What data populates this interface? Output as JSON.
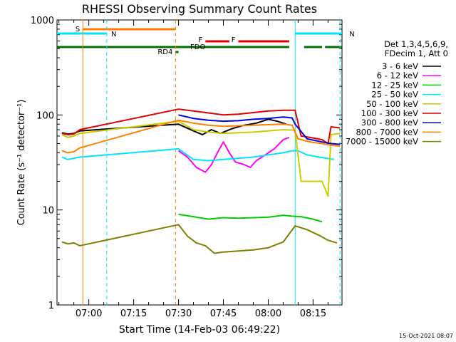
{
  "chart_data": {
    "type": "line",
    "title": "RHESSI Observing Summary Count Rates",
    "xlabel": "Start Time (14-Feb-03 06:49:22)",
    "ylabel": "Count Rate (s⁻¹ detector⁻¹)",
    "y_scale": "log",
    "ylim": [
      1,
      1000
    ],
    "xlim": [
      "06:49:22",
      "08:24:40"
    ],
    "x_ticks": [
      "07:00",
      "07:15",
      "07:30",
      "07:45",
      "08:00",
      "08:15"
    ],
    "y_ticks": [
      "1",
      "10",
      "100",
      "1000"
    ],
    "legend_header": [
      "Det 1,3,4,5,6,9,",
      "FDecim 1, Att 0"
    ],
    "legend_placement": "right",
    "timestamp": "15-Oct-2021 08:07",
    "segments": [
      {
        "label": "S",
        "type": "SAA",
        "color": "#ff8000",
        "start": "06:58:00",
        "end": "07:29:00"
      },
      {
        "label": "N",
        "type": "Night",
        "color": "#00e5ff",
        "start": "06:49:22",
        "end": "07:06:00"
      },
      {
        "label": "N",
        "type": "Night",
        "color": "#00e5ff",
        "start": "08:09:00",
        "end": "08:24:40"
      },
      {
        "label": "F",
        "type": "Flare",
        "color": "#e00000",
        "start": "07:39:00",
        "end": "07:47:00"
      },
      {
        "label": "F",
        "type": "Flare",
        "color": "#e00000",
        "start": "07:50:00",
        "end": "08:07:00"
      },
      {
        "label": "FDO",
        "type": "Decimation",
        "color": "#007000",
        "start": "06:49:22",
        "end": "08:07:00"
      },
      {
        "label": "",
        "type": "Decimation",
        "color": "#007000",
        "start": "08:12:00",
        "end": "08:18:00"
      },
      {
        "label": "",
        "type": "Decimation",
        "color": "#007000",
        "start": "08:19:00",
        "end": "08:24:40"
      },
      {
        "label": "RD4",
        "type": "Rear Decimation",
        "color": "#007000",
        "start": "07:29:00",
        "end": "07:30:00"
      }
    ],
    "vlines": [
      {
        "time": "06:58:00",
        "color": "#ff8000",
        "style": "solid"
      },
      {
        "time": "07:06:00",
        "color": "#00e5ff",
        "style": "dashed"
      },
      {
        "time": "07:29:00",
        "color": "#ff8000",
        "style": "dashed"
      },
      {
        "time": "08:09:00",
        "color": "#00e5ff",
        "style": "solid"
      },
      {
        "time": "08:24:00",
        "color": "#00e5ff",
        "style": "dashed"
      }
    ],
    "series": [
      {
        "name": "3 - 6 keV",
        "color": "#000000",
        "points": [
          [
            "06:51",
            65
          ],
          [
            "06:53",
            63
          ],
          [
            "06:55",
            64
          ],
          [
            "06:57",
            68
          ],
          [
            "07:30",
            80
          ],
          [
            "07:35",
            68
          ],
          [
            "07:38",
            62
          ],
          [
            "07:41",
            70
          ],
          [
            "07:44",
            64
          ],
          [
            "07:48",
            72
          ],
          [
            "07:52",
            78
          ],
          [
            "07:56",
            82
          ],
          [
            "08:00",
            90
          ],
          [
            "08:03",
            86
          ],
          [
            "08:06",
            80
          ]
        ]
      },
      {
        "name": "6 - 12 keV",
        "color": "#ff00ff",
        "points": [
          [
            "07:30",
            42
          ],
          [
            "07:33",
            36
          ],
          [
            "07:36",
            28
          ],
          [
            "07:39",
            25
          ],
          [
            "07:41",
            30
          ],
          [
            "07:43",
            40
          ],
          [
            "07:45",
            52
          ],
          [
            "07:47",
            40
          ],
          [
            "07:49",
            32
          ],
          [
            "07:52",
            30
          ],
          [
            "07:54",
            28
          ],
          [
            "07:56",
            33
          ],
          [
            "07:59",
            38
          ],
          [
            "08:02",
            44
          ],
          [
            "08:05",
            55
          ],
          [
            "08:07",
            58
          ]
        ]
      },
      {
        "name": "12 - 25 keV",
        "color": "#00cc00",
        "points": [
          [
            "07:30",
            9
          ],
          [
            "07:35",
            8.5
          ],
          [
            "07:40",
            8
          ],
          [
            "07:45",
            8.3
          ],
          [
            "07:50",
            8.2
          ],
          [
            "07:55",
            8.3
          ],
          [
            "08:00",
            8.4
          ],
          [
            "08:05",
            8.8
          ],
          [
            "08:08",
            8.6
          ],
          [
            "08:11",
            8.5
          ],
          [
            "08:15",
            8
          ],
          [
            "08:18",
            7.5
          ]
        ]
      },
      {
        "name": "25 - 50 keV",
        "color": "#00e5ff",
        "points": [
          [
            "06:51",
            36
          ],
          [
            "06:53",
            34
          ],
          [
            "06:55",
            35
          ],
          [
            "06:57",
            36
          ],
          [
            "07:30",
            44
          ],
          [
            "07:35",
            34
          ],
          [
            "07:40",
            33
          ],
          [
            "07:45",
            34
          ],
          [
            "07:50",
            35
          ],
          [
            "07:55",
            36
          ],
          [
            "08:00",
            38
          ],
          [
            "08:05",
            40
          ],
          [
            "08:08",
            42
          ],
          [
            "08:10",
            42
          ],
          [
            "08:13",
            38
          ],
          [
            "08:17",
            36
          ],
          [
            "08:22",
            34
          ]
        ]
      },
      {
        "name": "50 - 100 keV",
        "color": "#cccc00",
        "points": [
          [
            "06:51",
            62
          ],
          [
            "06:53",
            58
          ],
          [
            "06:55",
            60
          ],
          [
            "06:57",
            64
          ],
          [
            "07:30",
            86
          ],
          [
            "07:35",
            70
          ],
          [
            "07:40",
            66
          ],
          [
            "07:45",
            64
          ],
          [
            "07:50",
            65
          ],
          [
            "07:55",
            66
          ],
          [
            "08:00",
            68
          ],
          [
            "08:05",
            70
          ],
          [
            "08:09",
            69
          ],
          [
            "08:11",
            20
          ],
          [
            "08:18",
            20
          ],
          [
            "08:20",
            14
          ],
          [
            "08:21",
            62
          ],
          [
            "08:24",
            64
          ]
        ]
      },
      {
        "name": "100 - 300 keV",
        "color": "#e00000",
        "points": [
          [
            "06:51",
            64
          ],
          [
            "06:53",
            62
          ],
          [
            "06:55",
            63
          ],
          [
            "06:57",
            70
          ],
          [
            "07:30",
            115
          ],
          [
            "07:35",
            110
          ],
          [
            "07:40",
            105
          ],
          [
            "07:45",
            100
          ],
          [
            "07:50",
            102
          ],
          [
            "07:55",
            106
          ],
          [
            "08:00",
            110
          ],
          [
            "08:05",
            112
          ],
          [
            "08:09",
            112
          ],
          [
            "08:11",
            60
          ],
          [
            "08:14",
            58
          ],
          [
            "08:18",
            55
          ],
          [
            "08:20",
            50
          ],
          [
            "08:21",
            75
          ],
          [
            "08:24",
            73
          ]
        ]
      },
      {
        "name": "300 - 800 keV",
        "color": "#0000e0",
        "points": [
          [
            "07:30",
            100
          ],
          [
            "07:35",
            92
          ],
          [
            "07:40",
            88
          ],
          [
            "07:45",
            86
          ],
          [
            "07:50",
            87
          ],
          [
            "07:55",
            90
          ],
          [
            "08:00",
            92
          ],
          [
            "08:05",
            95
          ],
          [
            "08:08",
            93
          ],
          [
            "08:09",
            80
          ],
          [
            "08:13",
            56
          ],
          [
            "08:18",
            52
          ],
          [
            "08:21",
            50
          ],
          [
            "08:24",
            49
          ]
        ]
      },
      {
        "name": "800 - 7000 keV",
        "color": "#ff8000",
        "points": [
          [
            "06:51",
            42
          ],
          [
            "06:53",
            40
          ],
          [
            "06:55",
            41
          ],
          [
            "06:57",
            45
          ],
          [
            "07:30",
            88
          ],
          [
            "07:35",
            82
          ],
          [
            "07:40",
            78
          ],
          [
            "07:45",
            76
          ],
          [
            "07:50",
            77
          ],
          [
            "07:55",
            78
          ],
          [
            "08:00",
            79
          ],
          [
            "08:05",
            80
          ],
          [
            "08:08",
            78
          ],
          [
            "08:10",
            56
          ],
          [
            "08:14",
            52
          ],
          [
            "08:18",
            50
          ],
          [
            "08:21",
            48
          ],
          [
            "08:24",
            47
          ]
        ]
      },
      {
        "name": "7000 - 15000 keV",
        "color": "#808000",
        "points": [
          [
            "06:51",
            4.6
          ],
          [
            "06:53",
            4.4
          ],
          [
            "06:55",
            4.5
          ],
          [
            "06:57",
            4.2
          ],
          [
            "07:30",
            7
          ],
          [
            "07:33",
            5.3
          ],
          [
            "07:36",
            4.5
          ],
          [
            "07:39",
            4.2
          ],
          [
            "07:42",
            3.5
          ],
          [
            "07:45",
            3.6
          ],
          [
            "07:50",
            3.7
          ],
          [
            "07:55",
            3.8
          ],
          [
            "08:00",
            4
          ],
          [
            "08:05",
            4.6
          ],
          [
            "08:09",
            6.8
          ],
          [
            "08:13",
            6.2
          ],
          [
            "08:17",
            5.4
          ],
          [
            "08:20",
            4.8
          ],
          [
            "08:23",
            4.5
          ]
        ]
      }
    ]
  }
}
